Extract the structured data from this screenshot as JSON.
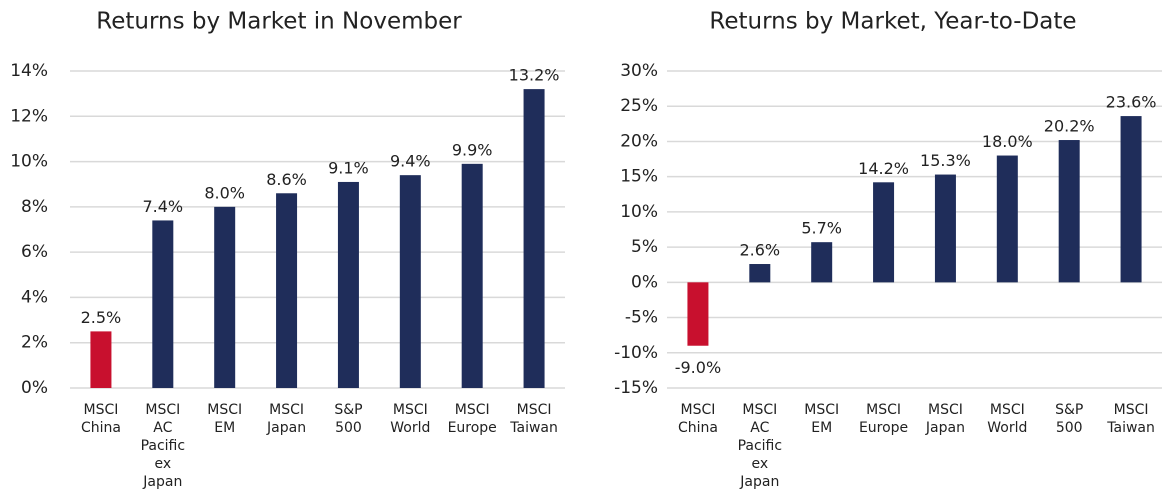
{
  "chart_data": [
    {
      "type": "bar",
      "title": "Returns by Market in November",
      "categories": [
        "MSCI China",
        "MSCI AC Pacific ex Japan",
        "MSCI EM",
        "MSCI Japan",
        "S&P 500",
        "MSCI World",
        "MSCI Europe",
        "MSCI Taiwan"
      ],
      "values": [
        2.5,
        7.4,
        8.0,
        8.6,
        9.1,
        9.4,
        9.9,
        13.2
      ],
      "value_labels": [
        "2.5%",
        "7.4%",
        "8.0%",
        "8.6%",
        "9.1%",
        "9.4%",
        "9.9%",
        "13.2%"
      ],
      "colors": [
        "#c8102e",
        "#1f2d5a",
        "#1f2d5a",
        "#1f2d5a",
        "#1f2d5a",
        "#1f2d5a",
        "#1f2d5a",
        "#1f2d5a"
      ],
      "ylim": [
        0,
        14
      ],
      "yticks": [
        {
          "value": 0,
          "label": "0%"
        },
        {
          "value": 2,
          "label": "2%"
        },
        {
          "value": 4,
          "label": "4%"
        },
        {
          "value": 6,
          "label": "6%"
        },
        {
          "value": 8,
          "label": "8%"
        },
        {
          "value": 10,
          "label": "10%"
        },
        {
          "value": 12,
          "label": "12%"
        },
        {
          "value": 14,
          "label": "14%"
        }
      ],
      "grid": true
    },
    {
      "type": "bar",
      "title": "Returns by Market, Year-to-Date",
      "categories": [
        "MSCI China",
        "MSCI AC Pacific ex Japan",
        "MSCI EM",
        "MSCI Europe",
        "MSCI Japan",
        "MSCI World",
        "S&P 500",
        "MSCI Taiwan"
      ],
      "values": [
        -9.0,
        2.6,
        5.7,
        14.2,
        15.3,
        18.0,
        20.2,
        23.6
      ],
      "value_labels": [
        "-9.0%",
        "2.6%",
        "5.7%",
        "14.2%",
        "15.3%",
        "18.0%",
        "20.2%",
        "23.6%"
      ],
      "colors": [
        "#c8102e",
        "#1f2d5a",
        "#1f2d5a",
        "#1f2d5a",
        "#1f2d5a",
        "#1f2d5a",
        "#1f2d5a",
        "#1f2d5a"
      ],
      "ylim": [
        -15,
        30
      ],
      "yticks": [
        {
          "value": -15,
          "label": "-15%"
        },
        {
          "value": -10,
          "label": "-10%"
        },
        {
          "value": -5,
          "label": "-5%"
        },
        {
          "value": 0,
          "label": "0%"
        },
        {
          "value": 5,
          "label": "5%"
        },
        {
          "value": 10,
          "label": "10%"
        },
        {
          "value": 15,
          "label": "15%"
        },
        {
          "value": 20,
          "label": "20%"
        },
        {
          "value": 25,
          "label": "25%"
        },
        {
          "value": 30,
          "label": "30%"
        }
      ],
      "grid": true
    }
  ]
}
